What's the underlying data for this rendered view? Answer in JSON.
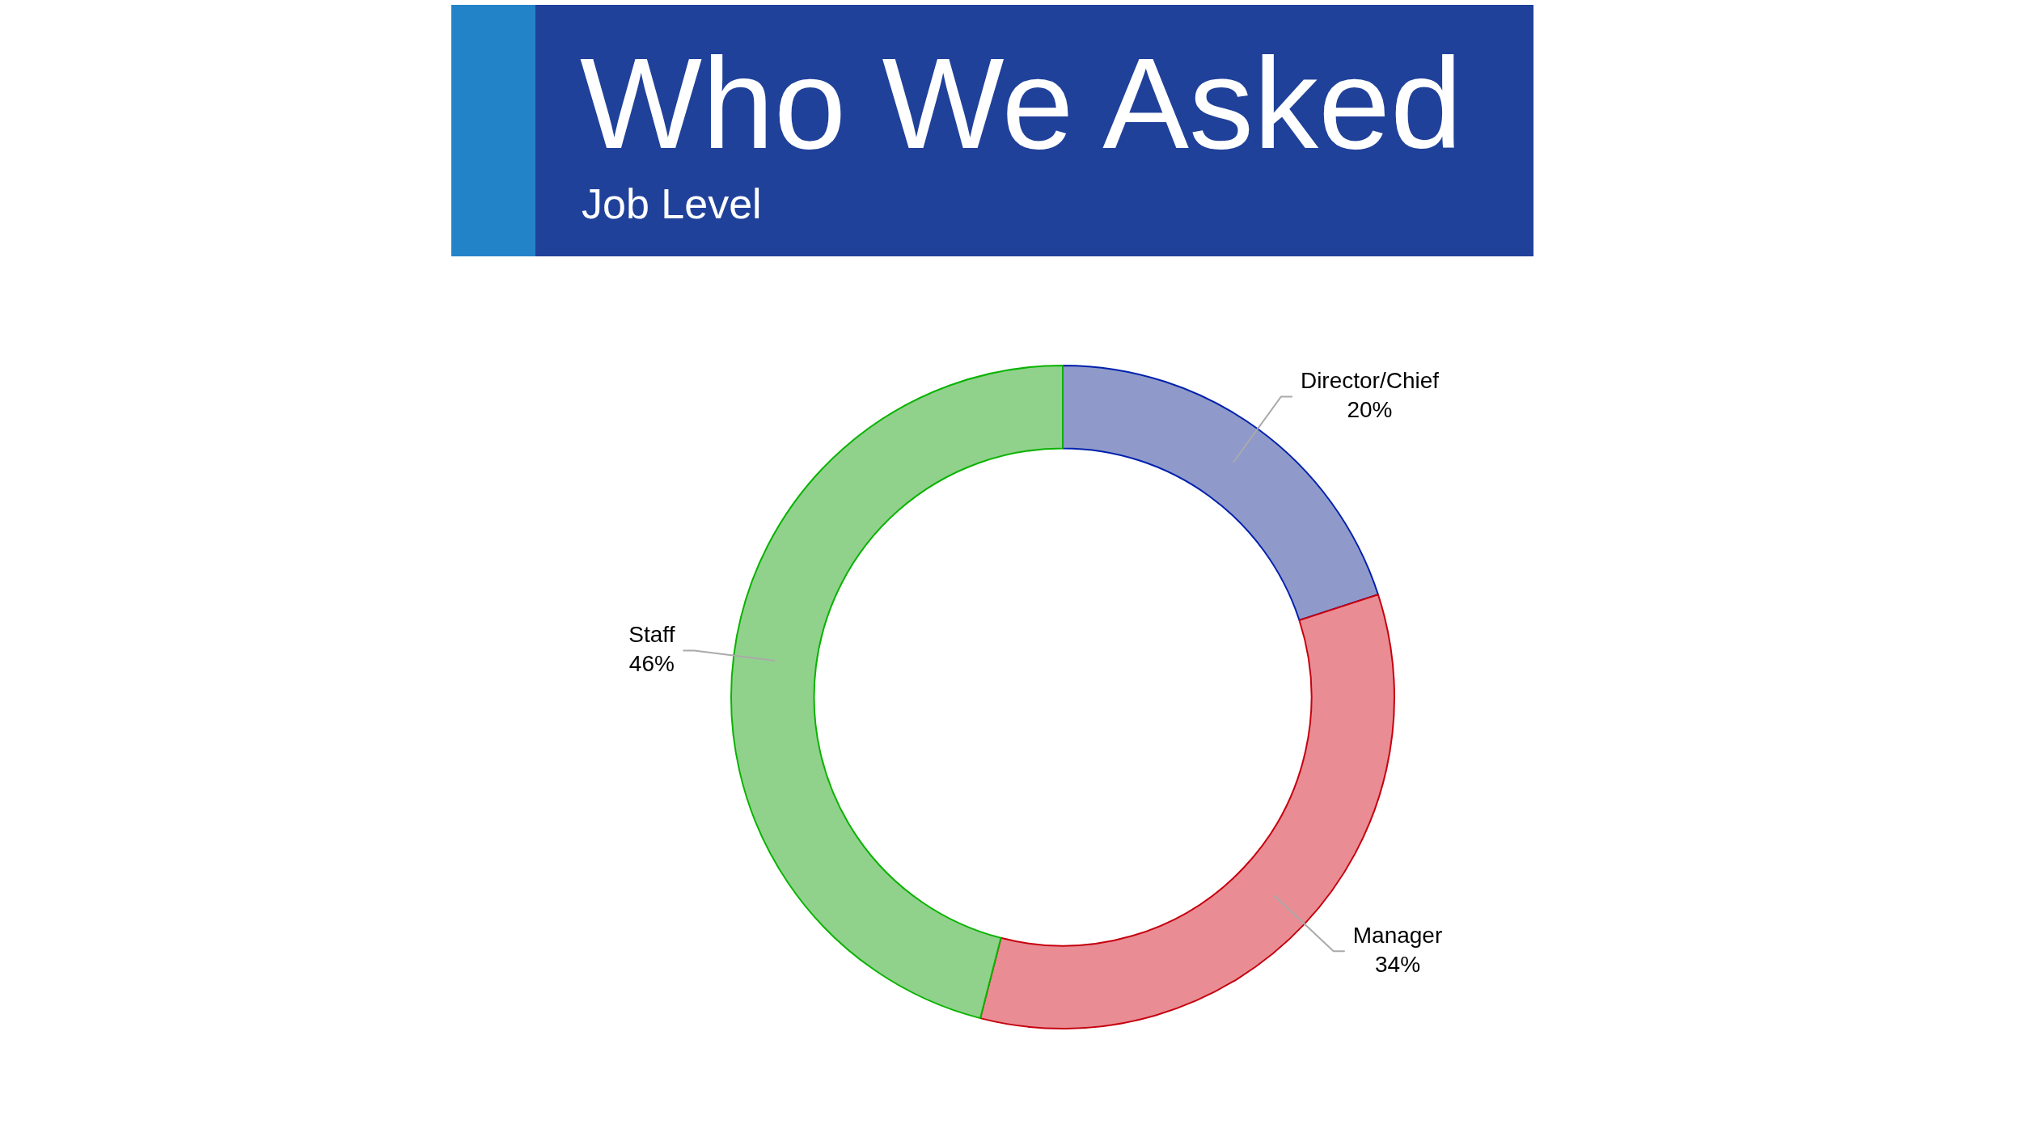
{
  "chart_data": {
    "type": "donut",
    "title": "Who We Asked",
    "subtitle": "Job Level",
    "categories": [
      "Director/Chief",
      "Manager",
      "Staff"
    ],
    "values": [
      20,
      34,
      46
    ],
    "value_labels": [
      "20%",
      "34%",
      "46%"
    ],
    "colors": [
      "#8f9acb",
      "#e98c93",
      "#90d28c"
    ],
    "legend": false
  }
}
